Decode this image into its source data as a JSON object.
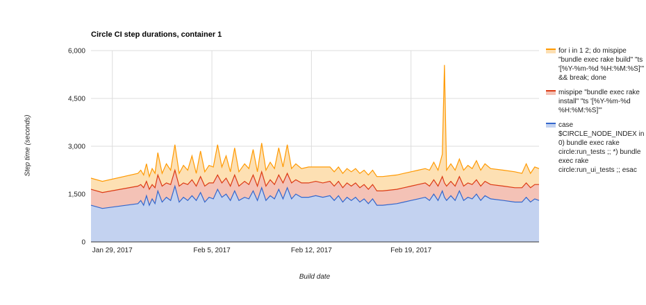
{
  "chart_data": {
    "type": "area",
    "stacked": true,
    "title": "Circle CI step durations, container 1",
    "xlabel": "Build date",
    "ylabel": "Step time (seconds)",
    "xlim_days": [
      27.5,
      59.0
    ],
    "ylim": [
      0,
      6000
    ],
    "yticks": [
      0,
      1500,
      3000,
      4500,
      6000
    ],
    "ytick_labels": [
      "0",
      "1,500",
      "3,000",
      "4,500",
      "6,000"
    ],
    "xticks": [
      {
        "day": 29,
        "label": "Jan 29, 2017"
      },
      {
        "day": 36,
        "label": "Feb 5, 2017"
      },
      {
        "day": 43,
        "label": "Feb 12, 2017"
      },
      {
        "day": 50,
        "label": "Feb 19, 2017"
      }
    ],
    "grid": true,
    "legend_position": "right",
    "x_days": [
      27.5,
      28.3,
      30.8,
      31.0,
      31.2,
      31.4,
      31.6,
      31.8,
      32.0,
      32.2,
      32.5,
      32.8,
      33.1,
      33.4,
      33.7,
      34.0,
      34.3,
      34.6,
      34.9,
      35.2,
      35.5,
      35.8,
      36.1,
      36.4,
      36.7,
      37.0,
      37.3,
      37.6,
      37.9,
      38.3,
      38.6,
      38.9,
      39.2,
      39.5,
      39.8,
      40.1,
      40.4,
      40.7,
      41.0,
      41.3,
      41.6,
      41.9,
      42.3,
      42.8,
      43.3,
      43.8,
      44.3,
      44.6,
      44.9,
      45.2,
      45.5,
      45.8,
      46.1,
      46.4,
      46.7,
      47.0,
      47.3,
      47.6,
      48.0,
      49.0,
      49.5,
      50.0,
      50.5,
      51.0,
      51.3,
      51.6,
      51.9,
      52.2,
      52.35,
      52.5,
      52.8,
      53.1,
      53.4,
      53.7,
      54.0,
      54.3,
      54.6,
      54.9,
      55.2,
      55.6,
      56.5,
      57.3,
      57.8,
      58.1,
      58.4,
      58.7,
      59.0
    ],
    "series": [
      {
        "name": "case $CIRCLE_NODE_INDEX in 0) bundle exec rake circle:run_tests ;; *) bundle exec rake circle:run_ui_tests ;; esac",
        "color": "#3366cc",
        "fill": "#c3d2f0",
        "values": [
          1150,
          1050,
          1200,
          1300,
          1150,
          1450,
          1150,
          1350,
          1200,
          1600,
          1250,
          1400,
          1300,
          1750,
          1250,
          1400,
          1300,
          1450,
          1300,
          1550,
          1250,
          1400,
          1350,
          1650,
          1400,
          1500,
          1300,
          1600,
          1300,
          1400,
          1350,
          1600,
          1300,
          1700,
          1300,
          1450,
          1350,
          1650,
          1350,
          1700,
          1350,
          1500,
          1400,
          1400,
          1450,
          1400,
          1450,
          1300,
          1450,
          1250,
          1400,
          1300,
          1400,
          1250,
          1350,
          1200,
          1350,
          1150,
          1150,
          1200,
          1250,
          1300,
          1350,
          1400,
          1300,
          1500,
          1300,
          1600,
          1400,
          1300,
          1450,
          1300,
          1600,
          1300,
          1400,
          1350,
          1500,
          1300,
          1450,
          1350,
          1300,
          1250,
          1250,
          1400,
          1250,
          1350,
          1300
        ]
      },
      {
        "name": "mispipe \"bundle exec rake install\" \"ts '[%Y-%m-%d %H:%M:%S]'\"",
        "color": "#dc3912",
        "fill": "#f4c2b6",
        "values": [
          500,
          500,
          550,
          500,
          550,
          450,
          500,
          450,
          500,
          500,
          500,
          450,
          500,
          500,
          500,
          450,
          500,
          500,
          450,
          500,
          500,
          450,
          500,
          450,
          450,
          500,
          450,
          500,
          450,
          500,
          450,
          500,
          450,
          500,
          450,
          500,
          450,
          450,
          500,
          450,
          500,
          450,
          450,
          450,
          450,
          450,
          450,
          450,
          450,
          450,
          450,
          450,
          450,
          450,
          450,
          450,
          450,
          450,
          450,
          450,
          450,
          450,
          450,
          450,
          450,
          450,
          450,
          450,
          450,
          450,
          450,
          450,
          450,
          450,
          450,
          450,
          450,
          450,
          450,
          450,
          450,
          450,
          450,
          450,
          450,
          450,
          500
        ]
      },
      {
        "name": "for i in 1 2; do mispipe \"bundle exec rake build\" \"ts '[%Y-%m-%d %H:%M:%S]'\" && break; done",
        "color": "#ff9900",
        "fill": "#fde0b3",
        "values": [
          350,
          350,
          400,
          450,
          400,
          550,
          400,
          500,
          450,
          700,
          400,
          600,
          450,
          800,
          400,
          550,
          450,
          750,
          400,
          800,
          450,
          550,
          500,
          950,
          500,
          700,
          450,
          850,
          450,
          550,
          500,
          800,
          450,
          900,
          500,
          550,
          500,
          850,
          500,
          900,
          450,
          500,
          450,
          500,
          450,
          500,
          450,
          450,
          450,
          450,
          450,
          450,
          450,
          450,
          450,
          450,
          450,
          450,
          450,
          450,
          450,
          450,
          450,
          450,
          500,
          550,
          500,
          700,
          3700,
          500,
          550,
          500,
          550,
          500,
          550,
          500,
          600,
          500,
          550,
          500,
          500,
          500,
          450,
          600,
          450,
          550,
          500
        ]
      }
    ]
  }
}
